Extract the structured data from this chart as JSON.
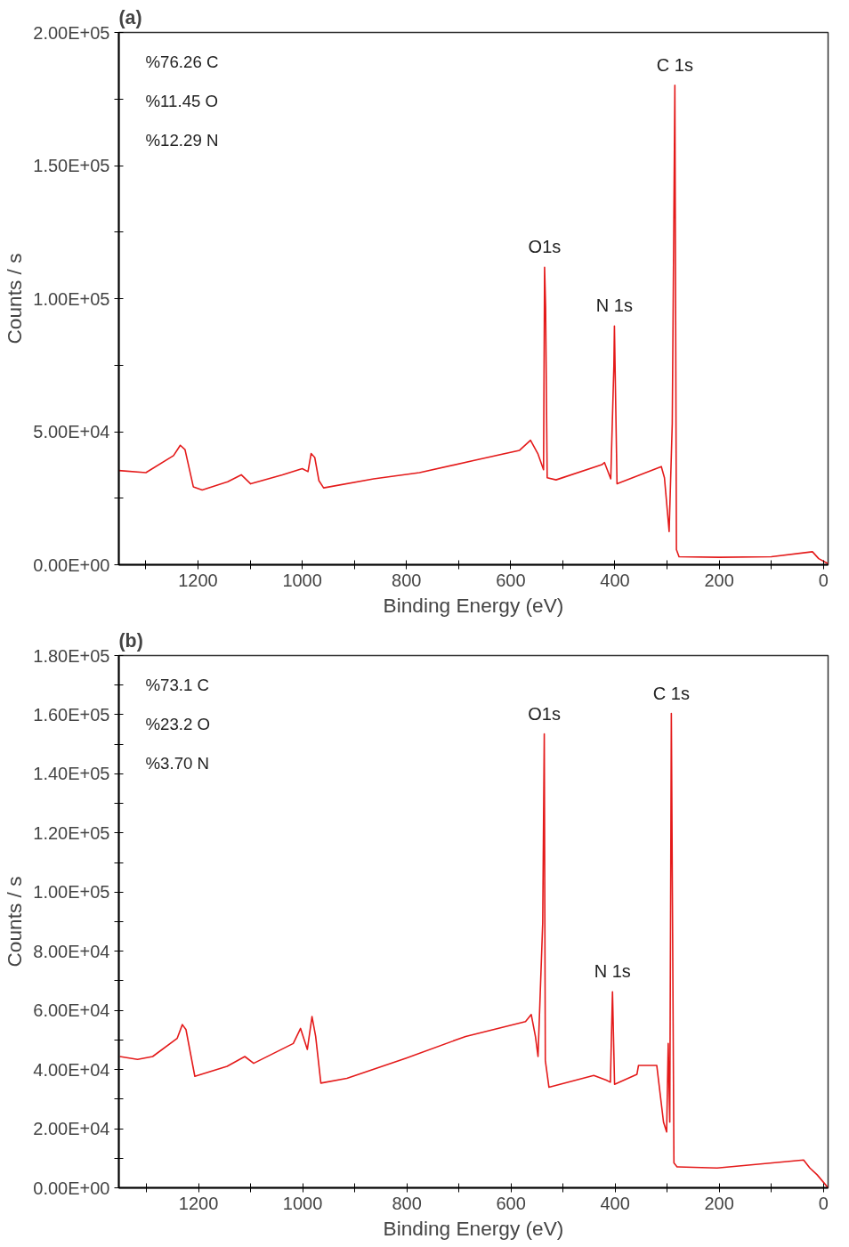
{
  "chart_data": [
    {
      "type": "line",
      "title": "(a)",
      "xlabel": "Binding Energy (eV)",
      "ylabel": "Counts / s",
      "xlim": [
        1352,
        -9
      ],
      "ylim": [
        0,
        200000
      ],
      "xticks": [
        {
          "value": 1300,
          "label": null
        },
        1200,
        {
          "value": 1100,
          "label": null
        },
        1000,
        {
          "value": 900,
          "label": null
        },
        800,
        {
          "value": 700,
          "label": null
        },
        600,
        {
          "value": 500,
          "label": null
        },
        400,
        {
          "value": 300,
          "label": null
        },
        200,
        {
          "value": 100,
          "label": null
        },
        0
      ],
      "yticks": [
        {
          "value": 0,
          "label": "0.00E+00"
        },
        {
          "value": 25000,
          "label": null
        },
        {
          "value": 50000,
          "label": "5.00E+04"
        },
        {
          "value": 75000,
          "label": null
        },
        {
          "value": 100000,
          "label": "1.00E+05"
        },
        {
          "value": 125000,
          "label": null
        },
        {
          "value": 150000,
          "label": "1.50E+05"
        },
        {
          "value": 175000,
          "label": null
        },
        {
          "value": 200000,
          "label": "2.00E+05"
        }
      ],
      "grid": false,
      "marker": "none",
      "line_style": "solid",
      "series": [
        {
          "color": "#e41a1a",
          "x": [
            1352,
            1300,
            1247,
            1234,
            1225,
            1209,
            1192,
            1143,
            1117,
            1099,
            1038,
            1000,
            989,
            983,
            976,
            968,
            959,
            863,
            775,
            670,
            583,
            562,
            548,
            537,
            535,
            533,
            530,
            513,
            425,
            420,
            408,
            402,
            401,
            396,
            311,
            305,
            296,
            290,
            285,
            282,
            277,
            200,
            100,
            21,
            9,
            -9
          ],
          "values": [
            35400,
            34600,
            41000,
            44900,
            43300,
            29300,
            28100,
            31200,
            33800,
            30400,
            33800,
            36100,
            35000,
            41800,
            40300,
            31600,
            28900,
            32300,
            34600,
            39200,
            43000,
            46800,
            41800,
            35700,
            111800,
            96600,
            32700,
            31900,
            37600,
            38400,
            32300,
            74900,
            89700,
            30400,
            36900,
            32700,
            12500,
            53200,
            180200,
            5700,
            3000,
            2800,
            3000,
            4900,
            2300,
            400
          ]
        }
      ],
      "annotations": [
        "%76.26 C",
        "%11.45 O",
        "%12.29 N",
        {
          "text": "C 1s",
          "x": 285,
          "y": 180200
        },
        {
          "text": "O1s",
          "x": 535,
          "y": 111800
        },
        {
          "text": "N 1s",
          "x": 401,
          "y": 89700
        }
      ]
    },
    {
      "type": "line",
      "title": "(b)",
      "xlabel": "Binding Energy (eV)",
      "ylabel": "Counts / s",
      "xlim": [
        1353,
        -9
      ],
      "ylim": [
        0,
        180000
      ],
      "xticks": [
        {
          "value": 1300,
          "label": null
        },
        1200,
        {
          "value": 1100,
          "label": null
        },
        1000,
        {
          "value": 900,
          "label": null
        },
        800,
        {
          "value": 700,
          "label": null
        },
        600,
        {
          "value": 500,
          "label": null
        },
        400,
        {
          "value": 300,
          "label": null
        },
        200,
        {
          "value": 100,
          "label": null
        },
        0
      ],
      "yticks": [
        {
          "value": 0,
          "label": "0.00E+00"
        },
        {
          "value": 10000,
          "label": null
        },
        {
          "value": 20000,
          "label": "2.00E+04"
        },
        {
          "value": 30000,
          "label": null
        },
        {
          "value": 40000,
          "label": "4.00E+04"
        },
        {
          "value": 50000,
          "label": null
        },
        {
          "value": 60000,
          "label": "6.00E+04"
        },
        {
          "value": 70000,
          "label": null
        },
        {
          "value": 80000,
          "label": "8.00E+04"
        },
        {
          "value": 90000,
          "label": null
        },
        {
          "value": 100000,
          "label": "1.00E+05"
        },
        {
          "value": 110000,
          "label": null
        },
        {
          "value": 120000,
          "label": "1.20E+05"
        },
        {
          "value": 130000,
          "label": null
        },
        {
          "value": 140000,
          "label": "1.40E+05"
        },
        {
          "value": 150000,
          "label": null
        },
        {
          "value": 160000,
          "label": "1.60E+05"
        },
        {
          "value": 170000,
          "label": null
        },
        {
          "value": 180000,
          "label": "1.80E+05"
        }
      ],
      "grid": false,
      "marker": "none",
      "line_style": "solid",
      "series": [
        {
          "color": "#e41a1a",
          "x": [
            1351,
            1317,
            1288,
            1241,
            1231,
            1224,
            1207,
            1145,
            1111,
            1094,
            1018,
            1004,
            991,
            982,
            975,
            965,
            915,
            802,
            687,
            572,
            561,
            553,
            548,
            539,
            536,
            534,
            527,
            441,
            417,
            409,
            405,
            401,
            358,
            355,
            320,
            307,
            301,
            298,
            295,
            292,
            287,
            281,
            204,
            38,
            26,
            12,
            -9
          ],
          "values": [
            44400,
            43400,
            44400,
            50500,
            55200,
            53500,
            37700,
            41100,
            44400,
            42100,
            48800,
            53900,
            46800,
            57900,
            51200,
            35400,
            37000,
            43800,
            51200,
            56200,
            58600,
            51200,
            44400,
            89600,
            153500,
            43100,
            34000,
            38000,
            36400,
            35700,
            66300,
            35000,
            38400,
            41400,
            41400,
            22200,
            18900,
            48800,
            22200,
            160400,
            8400,
            7100,
            6700,
            9400,
            6700,
            4400,
            0
          ]
        }
      ],
      "annotations": [
        "%73.1  C",
        "%23.2  O",
        "%3.70  N",
        {
          "text": "O1s",
          "x": 536,
          "y": 153500
        },
        {
          "text": "C 1s",
          "x": 292,
          "y": 160400
        },
        {
          "text": "N 1s",
          "x": 405,
          "y": 66300
        }
      ]
    }
  ]
}
